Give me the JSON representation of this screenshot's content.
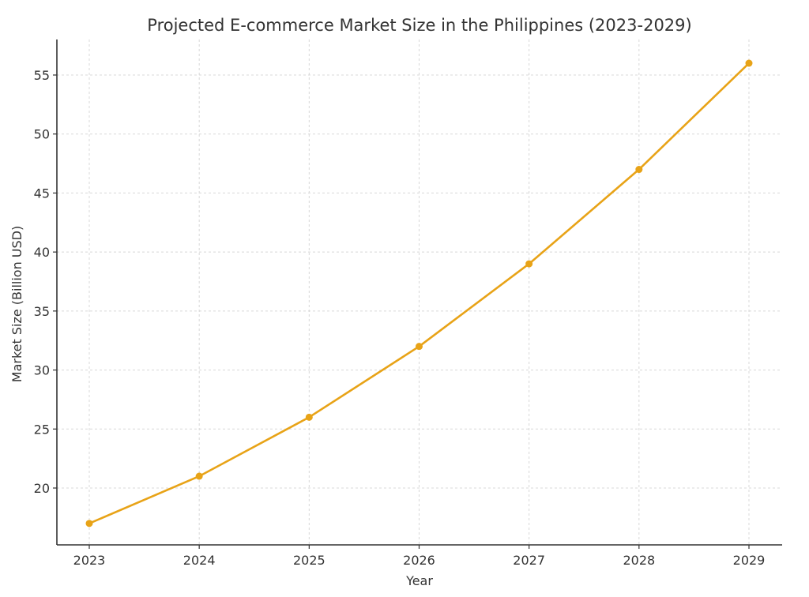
{
  "chart_data": {
    "type": "line",
    "title": "Projected E-commerce Market Size in the Philippines (2023-2029)",
    "xlabel": "Year",
    "ylabel": "Market Size (Billion USD)",
    "categories": [
      "2023",
      "2024",
      "2025",
      "2026",
      "2027",
      "2028",
      "2029"
    ],
    "series": [
      {
        "name": "Market Size",
        "color": "#E8A317",
        "marker": "circle",
        "values": [
          17,
          21,
          26,
          32,
          39,
          47,
          56
        ]
      }
    ],
    "yticks": [
      20,
      25,
      30,
      35,
      40,
      45,
      50,
      55
    ],
    "ylim": [
      15,
      58
    ],
    "grid": true,
    "legend": null
  }
}
